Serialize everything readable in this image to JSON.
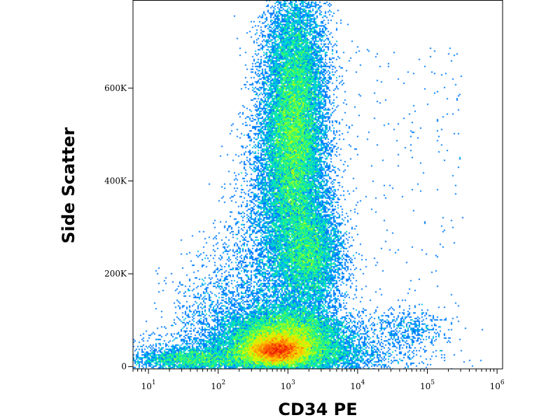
{
  "chart_data": {
    "type": "heatmap",
    "subtype": "flow-cytometry-density-dot-plot",
    "xlabel": "CD34 PE",
    "ylabel": "Side Scatter",
    "x_scale": "log",
    "xlim": [
      6,
      1200000
    ],
    "ylim": [
      -5000,
      790000
    ],
    "x_ticks": [
      {
        "base": "10",
        "exp": "1",
        "value": 10
      },
      {
        "base": "10",
        "exp": "2",
        "value": 100
      },
      {
        "base": "10",
        "exp": "3",
        "value": 1000
      },
      {
        "base": "10",
        "exp": "4",
        "value": 10000
      },
      {
        "base": "10",
        "exp": "5",
        "value": 100000
      },
      {
        "base": "10",
        "exp": "6",
        "value": 1000000
      }
    ],
    "y_ticks": [
      {
        "label": "0",
        "value": 0
      },
      {
        "label": "200K",
        "value": 200000
      },
      {
        "label": "400K",
        "value": 400000
      },
      {
        "label": "600K",
        "value": 600000
      }
    ],
    "grid": false,
    "legend": "none",
    "colormap": [
      "#0000c8",
      "#0050ff",
      "#00b4ff",
      "#00e6b4",
      "#40ff60",
      "#c8ff00",
      "#ffd000",
      "#ff6000",
      "#e00000"
    ],
    "populations": [
      {
        "x_center": 700,
        "y_center": 35000,
        "density": "highest"
      },
      {
        "x_center": 900,
        "y_center": 60000,
        "density": "high"
      },
      {
        "x_center": 1200,
        "y_center": 480000,
        "density": "medium"
      },
      {
        "x_center": 2200,
        "y_center": 240000,
        "density": "medium"
      },
      {
        "x_center": 50000,
        "y_center": 80000,
        "density": "low"
      }
    ]
  }
}
